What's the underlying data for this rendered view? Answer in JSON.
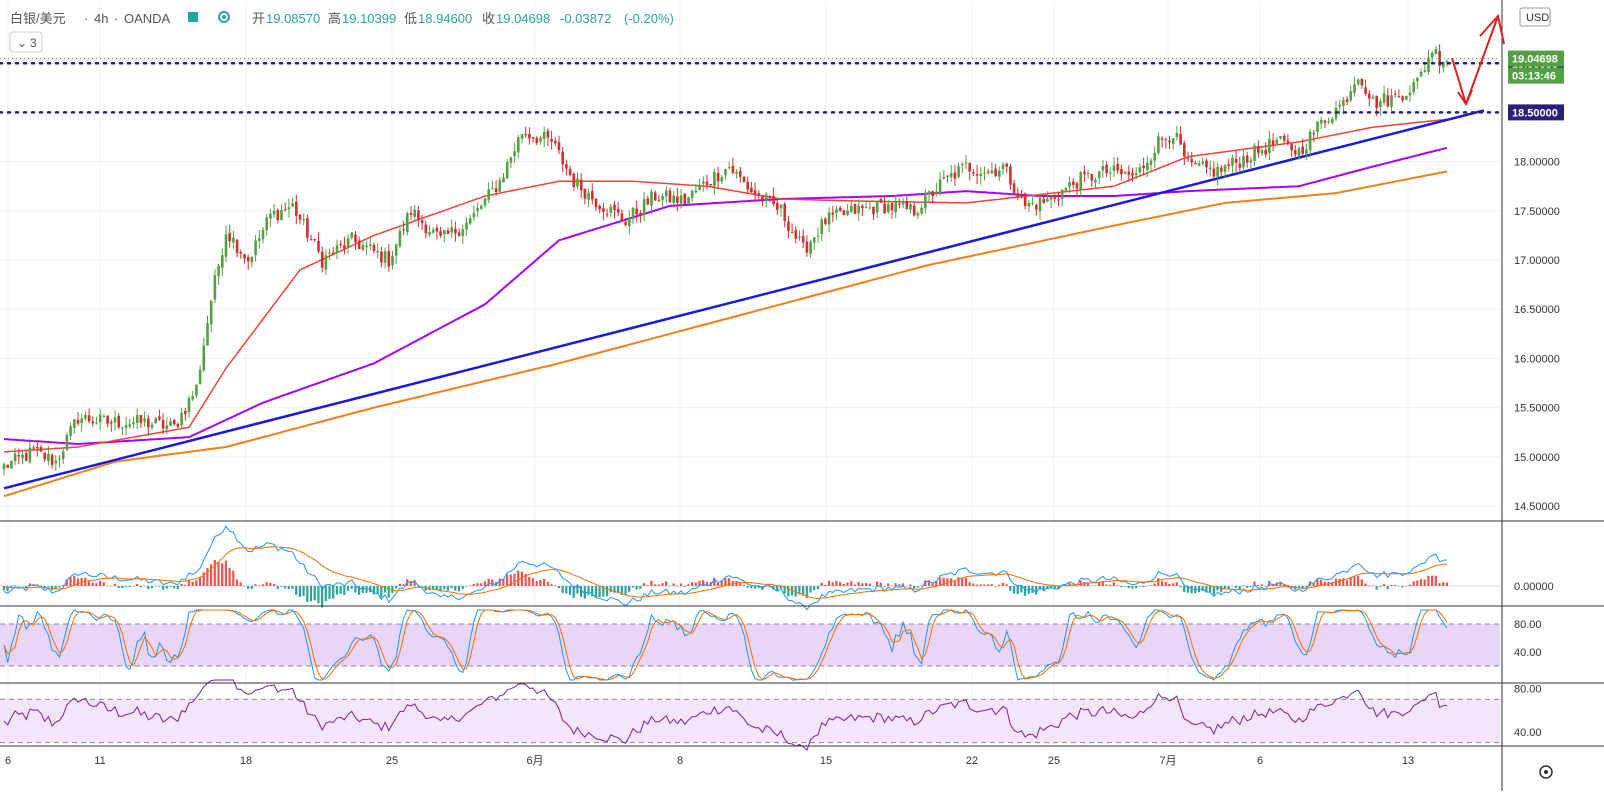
{
  "header": {
    "symbol": "白银/美元",
    "interval": "4h",
    "source": "OANDA",
    "open_label": "开",
    "open_value": "19.08570",
    "high_label": "高",
    "high_value": "19.10399",
    "low_label": "低",
    "low_value": "18.94600",
    "close_label": "收",
    "close_value": "19.04698",
    "change": "-0.03872",
    "change_pct": "(-0.20%)",
    "collapse_count": "3",
    "currency": "USD"
  },
  "price_axis": {
    "ticks": [
      "19.00000",
      "18.50000",
      "18.00000",
      "17.50000",
      "17.00000",
      "16.50000",
      "16.00000",
      "15.50000",
      "15.00000",
      "14.50000"
    ],
    "current_price": "19.04698",
    "countdown": "03:13:46",
    "level_upper": "19.00000",
    "level_lower": "18.50000"
  },
  "date_axis": {
    "labels": [
      "6",
      "11",
      "18",
      "25",
      "6月",
      "8",
      "15",
      "22",
      "25",
      "7月",
      "6",
      "13"
    ]
  },
  "macd_axis": {
    "ticks": [
      "0.00000"
    ]
  },
  "stoch_axis": {
    "ticks": [
      "80.00",
      "40.00"
    ]
  },
  "rsi_axis": {
    "ticks": [
      "80.00",
      "40.00"
    ]
  },
  "chart_data": {
    "type": "candlestick",
    "title": "白银/美元 · 4h · OANDA",
    "ylim": [
      14.38,
      19.2
    ],
    "y_ticks": [
      14.5,
      15.0,
      15.5,
      16.0,
      16.5,
      17.0,
      17.5,
      18.0,
      18.5,
      19.0
    ],
    "x_labels": [
      "6",
      "11",
      "18",
      "25",
      "6月",
      "8",
      "15",
      "22",
      "25",
      "7月",
      "6",
      "13"
    ],
    "anchors_close": [
      [
        0,
        14.9
      ],
      [
        8,
        15.05
      ],
      [
        14,
        14.95
      ],
      [
        20,
        15.4
      ],
      [
        28,
        15.35
      ],
      [
        38,
        15.35
      ],
      [
        46,
        15.3
      ],
      [
        52,
        15.7
      ],
      [
        56,
        16.6
      ],
      [
        60,
        17.3
      ],
      [
        66,
        17.0
      ],
      [
        72,
        17.45
      ],
      [
        78,
        17.55
      ],
      [
        86,
        17.0
      ],
      [
        94,
        17.2
      ],
      [
        104,
        17.0
      ],
      [
        110,
        17.5
      ],
      [
        118,
        17.2
      ],
      [
        126,
        17.4
      ],
      [
        134,
        17.8
      ],
      [
        140,
        18.3
      ],
      [
        148,
        18.2
      ],
      [
        154,
        17.8
      ],
      [
        160,
        17.6
      ],
      [
        168,
        17.4
      ],
      [
        176,
        17.65
      ],
      [
        184,
        17.6
      ],
      [
        190,
        17.8
      ],
      [
        196,
        17.95
      ],
      [
        202,
        17.7
      ],
      [
        210,
        17.5
      ],
      [
        216,
        17.1
      ],
      [
        222,
        17.4
      ],
      [
        230,
        17.5
      ],
      [
        238,
        17.55
      ],
      [
        246,
        17.5
      ],
      [
        254,
        17.8
      ],
      [
        260,
        17.95
      ],
      [
        266,
        17.9
      ],
      [
        270,
        17.95
      ],
      [
        276,
        17.55
      ],
      [
        282,
        17.6
      ],
      [
        290,
        17.8
      ],
      [
        298,
        17.9
      ],
      [
        306,
        17.85
      ],
      [
        312,
        18.2
      ],
      [
        316,
        18.3
      ],
      [
        320,
        17.95
      ],
      [
        328,
        17.9
      ],
      [
        336,
        18.05
      ],
      [
        344,
        18.2
      ],
      [
        350,
        18.1
      ],
      [
        356,
        18.4
      ],
      [
        362,
        18.6
      ],
      [
        366,
        18.9
      ],
      [
        370,
        18.6
      ],
      [
        376,
        18.65
      ],
      [
        382,
        18.8
      ],
      [
        386,
        19.15
      ],
      [
        388,
        19.05
      ],
      [
        390,
        19.05
      ]
    ],
    "ma_red_anchors": [
      [
        0,
        15.05
      ],
      [
        20,
        15.1
      ],
      [
        50,
        15.3
      ],
      [
        60,
        15.9
      ],
      [
        80,
        16.9
      ],
      [
        100,
        17.25
      ],
      [
        130,
        17.65
      ],
      [
        150,
        17.8
      ],
      [
        170,
        17.8
      ],
      [
        190,
        17.75
      ],
      [
        210,
        17.62
      ],
      [
        230,
        17.6
      ],
      [
        260,
        17.58
      ],
      [
        300,
        17.75
      ],
      [
        320,
        18.05
      ],
      [
        350,
        18.2
      ],
      [
        370,
        18.35
      ],
      [
        390,
        18.43
      ]
    ],
    "ma_purple_anchors": [
      [
        0,
        15.18
      ],
      [
        20,
        15.13
      ],
      [
        50,
        15.2
      ],
      [
        70,
        15.55
      ],
      [
        100,
        15.95
      ],
      [
        130,
        16.55
      ],
      [
        150,
        17.2
      ],
      [
        180,
        17.55
      ],
      [
        210,
        17.62
      ],
      [
        240,
        17.65
      ],
      [
        260,
        17.7
      ],
      [
        280,
        17.65
      ],
      [
        300,
        17.65
      ],
      [
        320,
        17.7
      ],
      [
        350,
        17.75
      ],
      [
        370,
        17.95
      ],
      [
        390,
        18.14
      ]
    ],
    "ma_orange_anchors": [
      [
        0,
        14.6
      ],
      [
        30,
        14.95
      ],
      [
        60,
        15.1
      ],
      [
        100,
        15.5
      ],
      [
        150,
        15.95
      ],
      [
        200,
        16.45
      ],
      [
        250,
        16.95
      ],
      [
        300,
        17.35
      ],
      [
        330,
        17.58
      ],
      [
        360,
        17.68
      ],
      [
        390,
        17.9
      ]
    ],
    "trendline": {
      "from": [
        0,
        14.68
      ],
      "to": [
        400,
        18.52
      ]
    },
    "horizontal_levels": [
      19.0,
      18.5
    ],
    "current_price": 19.04698,
    "macd": {
      "zero": 0.0,
      "range": [
        -0.18,
        0.62
      ]
    },
    "stoch": {
      "upper_band": 80,
      "lower_band": 20,
      "range": [
        0,
        100
      ]
    },
    "rsi": {
      "upper_band": 70,
      "lower_band": 30,
      "range": [
        20,
        90
      ]
    }
  }
}
